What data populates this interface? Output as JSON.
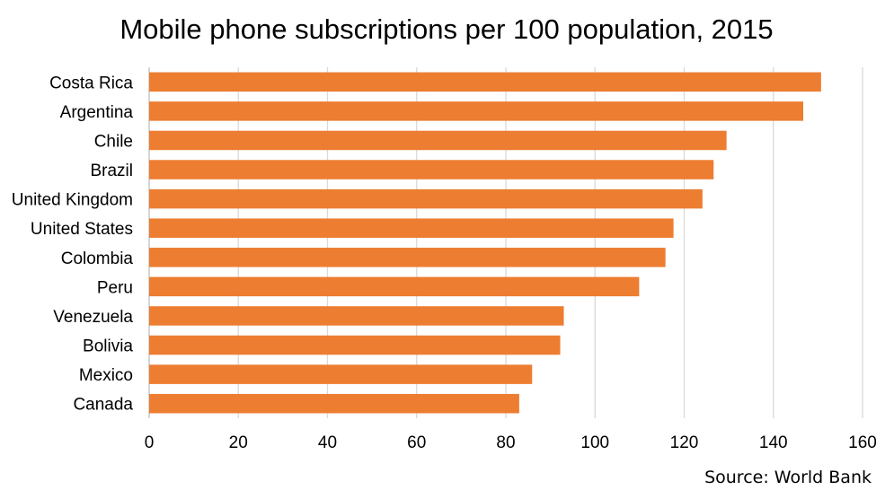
{
  "chart_data": {
    "type": "bar",
    "orientation": "horizontal",
    "title": "Mobile phone subscriptions per 100 population, 2015",
    "categories": [
      "Costa Rica",
      "Argentina",
      "Chile",
      "Brazil",
      "United Kingdom",
      "United States",
      "Colombia",
      "Peru",
      "Venezuela",
      "Bolivia",
      "Mexico",
      "Canada"
    ],
    "values": [
      150.7,
      146.7,
      129.5,
      126.6,
      124.1,
      117.6,
      115.8,
      109.9,
      93.0,
      92.2,
      85.9,
      83.0
    ],
    "xlim": [
      0,
      160
    ],
    "xticks": [
      0,
      20,
      40,
      60,
      80,
      100,
      120,
      140,
      160
    ],
    "xlabel": "",
    "ylabel": "",
    "grid": true,
    "legend": "none",
    "bar_color": "#ED7D31"
  },
  "source_note": "Source: World Bank"
}
